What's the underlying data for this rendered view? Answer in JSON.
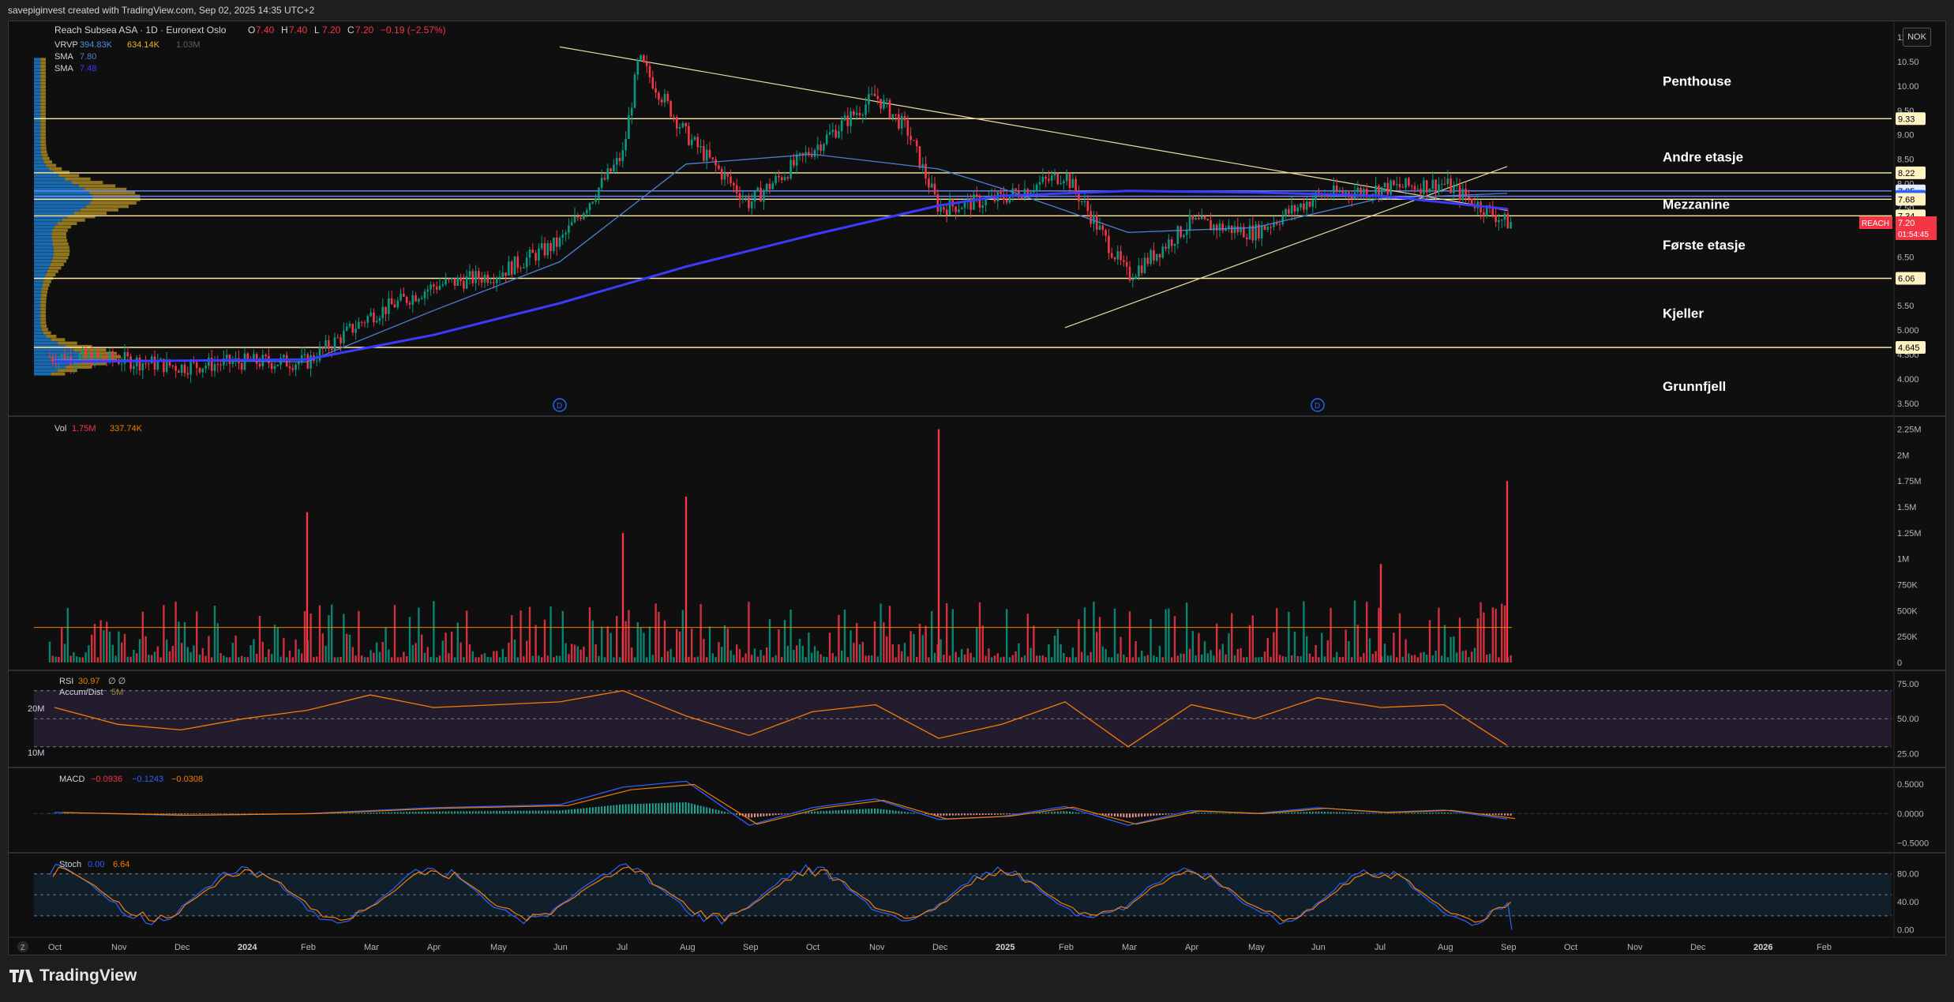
{
  "header": {
    "created_by": "savepiginvest created with TradingView.com, Sep 02, 2025 14:35 UTC+2"
  },
  "currency": "NOK",
  "legend": {
    "symbol_line": "Reach Subsea ASA · 1D · Euronext Oslo",
    "ohlc": [
      {
        "k": "O",
        "v": "7.40"
      },
      {
        "k": "H",
        "v": "7.40"
      },
      {
        "k": "L",
        "v": "7.20"
      },
      {
        "k": "C",
        "v": "7.20"
      }
    ],
    "change": "−0.19 (−2.57%)",
    "vrvp_label": "VRVP",
    "vrvp_values": [
      "394.83K",
      "634.14K",
      "1.03M"
    ],
    "sma1_label": "SMA",
    "sma1_value": "7.80",
    "sma2_label": "SMA",
    "sma2_value": "7.48",
    "vol_label": "Vol",
    "vol_values": [
      "1.75M",
      "337.74K"
    ],
    "rsi_label": "RSI",
    "rsi_values": [
      "30.97",
      "∅",
      "∅"
    ],
    "accum_label": "Accum/Dist",
    "accum_value": "5M",
    "macd_label": "MACD",
    "macd_values": [
      "−0.0936",
      "−0.1243",
      "−0.0308"
    ],
    "stoch_label": "Stoch",
    "stoch_values": [
      "0.00",
      "6.64"
    ]
  },
  "zones": [
    {
      "label": "Penthouse",
      "price": 10.1
    },
    {
      "label": "Andre etasje",
      "price": 8.55
    },
    {
      "label": "Mezzanine",
      "price": 7.58
    },
    {
      "label": "Første etasje",
      "price": 6.75
    },
    {
      "label": "Kjeller",
      "price": 5.35
    },
    {
      "label": "Grunnfjell",
      "price": 3.85
    }
  ],
  "price_badges": [
    {
      "text": "9.33",
      "price": 9.33,
      "bg": "#fff3c4",
      "fg": "#000000"
    },
    {
      "text": "8.22",
      "price": 8.22,
      "bg": "#fff3c4",
      "fg": "#000000"
    },
    {
      "text": "7.85",
      "price": 7.85,
      "bg": "#e3eeff",
      "fg": "#000000"
    },
    {
      "text": "7.74",
      "price": 7.74,
      "bg": "#2962ff",
      "fg": "#ffffff"
    },
    {
      "text": "7.68",
      "price": 7.68,
      "bg": "#fff3c4",
      "fg": "#000000"
    },
    {
      "text": "7.34",
      "price": 7.34,
      "bg": "#fff3c4",
      "fg": "#000000"
    },
    {
      "text": "6.06",
      "price": 6.06,
      "bg": "#fff3c4",
      "fg": "#000000"
    },
    {
      "text": "4.645",
      "price": 4.645,
      "bg": "#fff3c4",
      "fg": "#000000"
    }
  ],
  "last_price": {
    "symbol": "REACH",
    "price": "7.20",
    "countdown": "01:54:45",
    "color": "#f23645"
  },
  "colors": {
    "up": "#089981",
    "down": "#f23645",
    "sma_fast": "#4c7fd1",
    "sma_slow": "#3b3bff",
    "level": "#ffeaa0",
    "vp_up": "#1e88e5",
    "vp_down": "#c9a227",
    "accent": "#f57c00"
  },
  "events": [
    {
      "marker": "D",
      "date": "Jun 2024"
    },
    {
      "marker": "D",
      "date": "Jun 2025"
    }
  ],
  "time_axis": [
    "Oct",
    "Nov",
    "Dec",
    "2024",
    "Feb",
    "Mar",
    "Apr",
    "May",
    "Jun",
    "Jul",
    "Aug",
    "Sep",
    "Oct",
    "Nov",
    "Dec",
    "2025",
    "Feb",
    "Mar",
    "Apr",
    "May",
    "Jun",
    "Jul",
    "Aug",
    "Sep",
    "Oct",
    "Nov",
    "Dec",
    "2026",
    "Feb"
  ],
  "goto_button": "Z",
  "footer": {
    "brand": "TradingView"
  },
  "chart_data": [
    {
      "type": "candlestick",
      "title": "Reach Subsea ASA · 1D · Euronext Oslo",
      "y_ticks": [
        "11.00",
        "10.50",
        "10.00",
        "9.50",
        "9.00",
        "8.50",
        "8.00",
        "7.50",
        "7.00",
        "6.50",
        "6.00",
        "5.50",
        "5.000",
        "4.500",
        "4.000",
        "3.500"
      ],
      "ylim": [
        3.4,
        11.0
      ],
      "series_points": [
        [
          "Oct 2023",
          4.45
        ],
        [
          "Nov 2023",
          4.4
        ],
        [
          "Dec 2023",
          4.25
        ],
        [
          "2024",
          4.35
        ],
        [
          "Feb 2024",
          4.35
        ],
        [
          "Mar 2024",
          5.3
        ],
        [
          "Apr 2024",
          5.9
        ],
        [
          "May 2024",
          6.15
        ],
        [
          "Jun 2024",
          6.8
        ],
        [
          "Jul 2024",
          8.6
        ],
        [
          "Jul 2024 peak",
          10.55
        ],
        [
          "Aug 2024",
          9.0
        ],
        [
          "Sep 2024",
          7.6
        ],
        [
          "Oct 2024",
          8.7
        ],
        [
          "Nov 2024",
          9.8
        ],
        [
          "Nov 2024 b",
          9.1
        ],
        [
          "Dec 2024",
          7.5
        ],
        [
          "2025",
          7.7
        ],
        [
          "Feb 2025",
          8.2
        ],
        [
          "Mar 2025",
          6.1
        ],
        [
          "Apr 2025",
          7.2
        ],
        [
          "May 2025",
          7.0
        ],
        [
          "Jun 2025",
          7.75
        ],
        [
          "Jul 2025",
          7.9
        ],
        [
          "Aug 2025",
          8.0
        ],
        [
          "Sep 2025",
          7.2
        ]
      ],
      "sma_fast_points": [
        [
          "Oct 2023",
          4.4
        ],
        [
          "Feb 2024",
          4.35
        ],
        [
          "Apr 2024",
          5.4
        ],
        [
          "Jun 2024",
          6.4
        ],
        [
          "Aug 2024",
          8.4
        ],
        [
          "Oct 2024",
          8.6
        ],
        [
          "Dec 2024",
          8.3
        ],
        [
          "2025",
          7.9
        ],
        [
          "Mar 2025",
          7.0
        ],
        [
          "May 2025",
          7.1
        ],
        [
          "Jul 2025",
          7.7
        ],
        [
          "Sep 2025",
          7.8
        ]
      ],
      "sma_slow_points": [
        [
          "Oct 2023",
          4.35
        ],
        [
          "Feb 2024",
          4.4
        ],
        [
          "Apr 2024",
          4.9
        ],
        [
          "Jun 2024",
          5.55
        ],
        [
          "Aug 2024",
          6.3
        ],
        [
          "Oct 2024",
          6.95
        ],
        [
          "Dec 2024",
          7.55
        ],
        [
          "2025",
          7.75
        ],
        [
          "Mar 2025",
          7.85
        ],
        [
          "May 2025",
          7.82
        ],
        [
          "Jul 2025",
          7.75
        ],
        [
          "Sep 2025",
          7.48
        ]
      ],
      "horizontal_levels": [
        9.33,
        8.22,
        7.85,
        7.74,
        7.68,
        7.34,
        6.06,
        4.645
      ],
      "trendlines": [
        {
          "from": [
            "Jun 2024",
            10.8
          ],
          "to": [
            "Sep 2025",
            7.45
          ]
        },
        {
          "from": [
            "Feb 2025",
            5.05
          ],
          "to": [
            "Sep 2025",
            8.35
          ]
        }
      ]
    },
    {
      "type": "bar",
      "title": "Vol",
      "y_ticks": [
        "2.25M",
        "2M",
        "1.75M",
        "1.5M",
        "1.25M",
        "1M",
        "750K",
        "500K",
        "250K",
        "0"
      ],
      "ylim": [
        0,
        2.3
      ],
      "unit": "M",
      "notable_values": [
        {
          "date": "Feb 2024",
          "value": 1.45
        },
        {
          "date": "Jul 2024",
          "value": 1.25
        },
        {
          "date": "Aug 2024",
          "value": 1.6
        },
        {
          "date": "Dec 2024",
          "value": 2.25
        },
        {
          "date": "Jul 2025",
          "value": 0.95
        },
        {
          "date": "Sep 2025",
          "value": 1.75
        }
      ],
      "ma_value": 0.33774
    },
    {
      "type": "line",
      "title": "RSI",
      "y_ticks": [
        "75.00",
        "50.00",
        "25.00"
      ],
      "left_ticks": [
        "20M",
        "10M"
      ],
      "ylim": [
        18,
        80
      ],
      "band": [
        30,
        70
      ],
      "points": [
        [
          "Oct 2023",
          58
        ],
        [
          "Nov 2023",
          46
        ],
        [
          "Dec 2023",
          42
        ],
        [
          "2024",
          50
        ],
        [
          "Feb 2024",
          56
        ],
        [
          "Mar 2024",
          67
        ],
        [
          "Apr 2024",
          58
        ],
        [
          "May 2024",
          60
        ],
        [
          "Jun 2024",
          62
        ],
        [
          "Jul 2024",
          70
        ],
        [
          "Aug 2024",
          52
        ],
        [
          "Sep 2024",
          38
        ],
        [
          "Oct 2024",
          55
        ],
        [
          "Nov 2024",
          60
        ],
        [
          "Dec 2024",
          36
        ],
        [
          "2025",
          46
        ],
        [
          "Feb 2025",
          62
        ],
        [
          "Mar 2025",
          30
        ],
        [
          "Apr 2025",
          60
        ],
        [
          "May 2025",
          50
        ],
        [
          "Jun 2025",
          65
        ],
        [
          "Jul 2025",
          58
        ],
        [
          "Aug 2025",
          60
        ],
        [
          "Sep 2025",
          30.97
        ]
      ]
    },
    {
      "type": "line",
      "title": "MACD",
      "y_ticks": [
        "0.5000",
        "0.0000",
        "−0.5000"
      ],
      "ylim": [
        -0.6,
        0.65
      ],
      "points": [
        [
          "Oct 2023",
          0.02
        ],
        [
          "Dec 2023",
          -0.03
        ],
        [
          "Feb 2024",
          0.0
        ],
        [
          "Apr 2024",
          0.1
        ],
        [
          "Jun 2024",
          0.15
        ],
        [
          "Jul 2024",
          0.45
        ],
        [
          "Aug 2024",
          0.55
        ],
        [
          "Sep 2024",
          -0.2
        ],
        [
          "Oct 2024",
          0.1
        ],
        [
          "Nov 2024",
          0.25
        ],
        [
          "Dec 2024",
          -0.1
        ],
        [
          "2025",
          -0.05
        ],
        [
          "Feb 2025",
          0.12
        ],
        [
          "Mar 2025",
          -0.2
        ],
        [
          "Apr 2025",
          0.05
        ],
        [
          "May 2025",
          0.0
        ],
        [
          "Jun 2025",
          0.1
        ],
        [
          "Jul 2025",
          0.02
        ],
        [
          "Aug 2025",
          0.06
        ],
        [
          "Sep 2025",
          -0.0936
        ]
      ]
    },
    {
      "type": "line",
      "title": "Stoch",
      "y_ticks": [
        "80.00",
        "40.00",
        "0.00"
      ],
      "ylim": [
        -5,
        100
      ],
      "band": [
        20,
        80
      ],
      "last": 0.0
    }
  ]
}
